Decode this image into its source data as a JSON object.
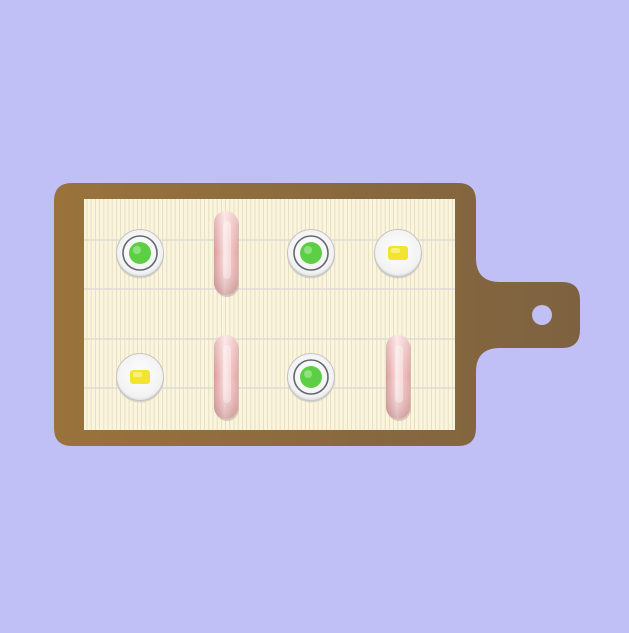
{
  "scene": {
    "background_color": "#c0c0f6",
    "board_color": "#8c6a3c",
    "mat_color": "#fbf5de"
  },
  "board": {
    "columns": 4,
    "rows": 2,
    "slots": [
      {
        "row": 0,
        "col": 0,
        "piece": "cucumber-roll"
      },
      {
        "row": 0,
        "col": 1,
        "piece": "salmon-nigiri"
      },
      {
        "row": 0,
        "col": 2,
        "piece": "cucumber-roll"
      },
      {
        "row": 0,
        "col": 3,
        "piece": "tamago-roll"
      },
      {
        "row": 1,
        "col": 0,
        "piece": "tamago-roll"
      },
      {
        "row": 1,
        "col": 1,
        "piece": "salmon-nigiri"
      },
      {
        "row": 1,
        "col": 2,
        "piece": "cucumber-roll"
      },
      {
        "row": 1,
        "col": 3,
        "piece": "salmon-nigiri"
      }
    ]
  },
  "pieces": {
    "cucumber-roll": {
      "filling_color": "#5ccf45",
      "icon": "cucumber-roll-icon"
    },
    "tamago-roll": {
      "filling_color": "#f3e431",
      "icon": "tamago-roll-icon"
    },
    "salmon-nigiri": {
      "top_color": "#f2b8b8",
      "icon": "salmon-nigiri-icon"
    }
  }
}
